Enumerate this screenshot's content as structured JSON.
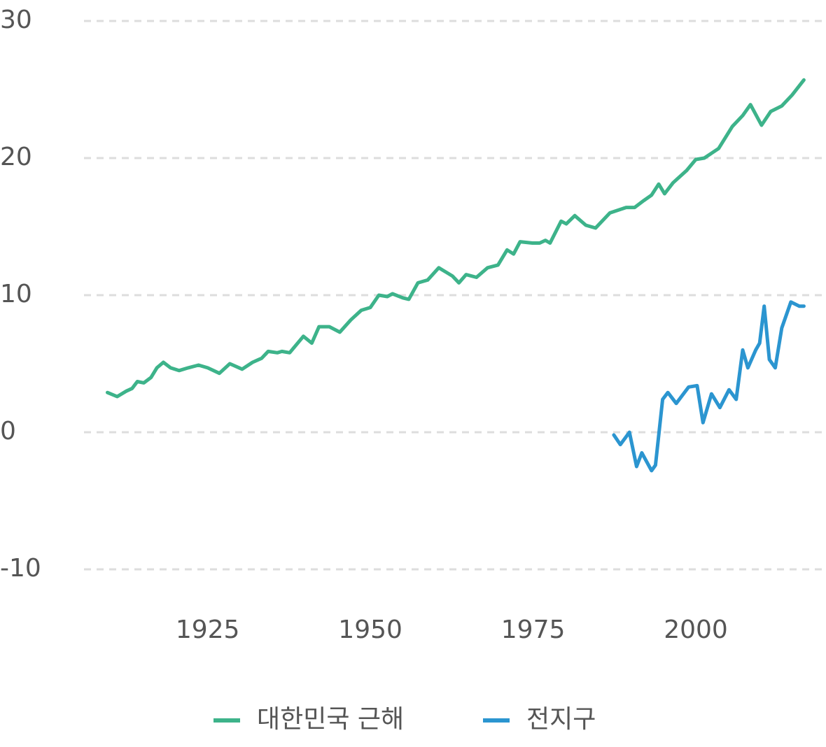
{
  "chart_data": {
    "type": "line",
    "xlim": [
      1906,
      2020
    ],
    "xticks": [
      1925,
      1950,
      1975,
      2000
    ],
    "ylim": [
      -10,
      30
    ],
    "yticks": [
      -10,
      0,
      10,
      20,
      30
    ],
    "grid": true,
    "legend": "bottom",
    "series": [
      {
        "name": "대한민국 근해",
        "color": "#3db38a",
        "x": [
          1909.6,
          1911.1,
          1912.5,
          1913.4,
          1914.2,
          1915.2,
          1916.3,
          1917.2,
          1918.2,
          1919.3,
          1920.6,
          1922.0,
          1923.6,
          1925.0,
          1926.8,
          1928.4,
          1930.3,
          1931.9,
          1933.3,
          1934.3,
          1935.7,
          1936.4,
          1937.6,
          1938.3,
          1939.7,
          1941.0,
          1942.1,
          1943.7,
          1945.3,
          1947.0,
          1948.6,
          1950.0,
          1951.3,
          1952.6,
          1953.4,
          1955.0,
          1955.9,
          1957.3,
          1958.8,
          1960.5,
          1962.6,
          1963.6,
          1964.7,
          1966.3,
          1968.0,
          1969.6,
          1971.0,
          1972.0,
          1973.0,
          1974.9,
          1976.0,
          1976.9,
          1977.6,
          1979.3,
          1980.1,
          1981.4,
          1983.1,
          1984.6,
          1986.8,
          1989.3,
          1990.6,
          1992.0,
          1993.2,
          1994.3,
          1995.2,
          1996.5,
          1998.6,
          2000.0,
          2001.3,
          2003.5,
          2005.6,
          2007.2,
          2008.4,
          2010.1,
          2011.5,
          2013.2,
          2014.8,
          2016.6
        ],
        "values": [
          2.9,
          2.6,
          3.0,
          3.2,
          3.7,
          3.6,
          4.0,
          4.7,
          5.1,
          4.7,
          4.5,
          4.7,
          4.9,
          4.7,
          4.3,
          5.0,
          4.6,
          5.1,
          5.4,
          5.9,
          5.8,
          5.9,
          5.8,
          6.2,
          7.0,
          6.5,
          7.7,
          7.7,
          7.3,
          8.2,
          8.9,
          9.1,
          10.0,
          9.9,
          10.1,
          9.8,
          9.7,
          10.9,
          11.1,
          12.0,
          11.4,
          10.9,
          11.5,
          11.3,
          12.0,
          12.2,
          13.3,
          13.0,
          13.9,
          13.8,
          13.8,
          14.0,
          13.8,
          15.4,
          15.2,
          15.8,
          15.1,
          14.9,
          16.0,
          16.4,
          16.4,
          16.9,
          17.3,
          18.1,
          17.4,
          18.2,
          19.1,
          19.9,
          20.0,
          20.7,
          22.3,
          23.1,
          23.9,
          22.4,
          23.4,
          23.8,
          24.6,
          25.7
        ]
      },
      {
        "name": "전지구",
        "color": "#2b95d0",
        "x": [
          1987.4,
          1988.4,
          1989.8,
          1990.9,
          1991.7,
          1993.2,
          1993.8,
          1994.9,
          1995.7,
          1997.0,
          1998.9,
          2000.2,
          2001.1,
          2002.4,
          2003.7,
          2005.1,
          2006.2,
          2007.2,
          2008.0,
          2009.2,
          2009.8,
          2010.5,
          2011.3,
          2012.2,
          2013.2,
          2014.6,
          2015.9,
          2016.6
        ],
        "values": [
          -0.2,
          -0.9,
          0.0,
          -2.5,
          -1.5,
          -2.8,
          -2.4,
          2.4,
          2.9,
          2.1,
          3.3,
          3.4,
          0.7,
          2.8,
          1.8,
          3.1,
          2.4,
          6.0,
          4.7,
          6.0,
          6.5,
          9.2,
          5.3,
          4.7,
          7.6,
          9.5,
          9.2,
          9.2
        ]
      }
    ]
  }
}
